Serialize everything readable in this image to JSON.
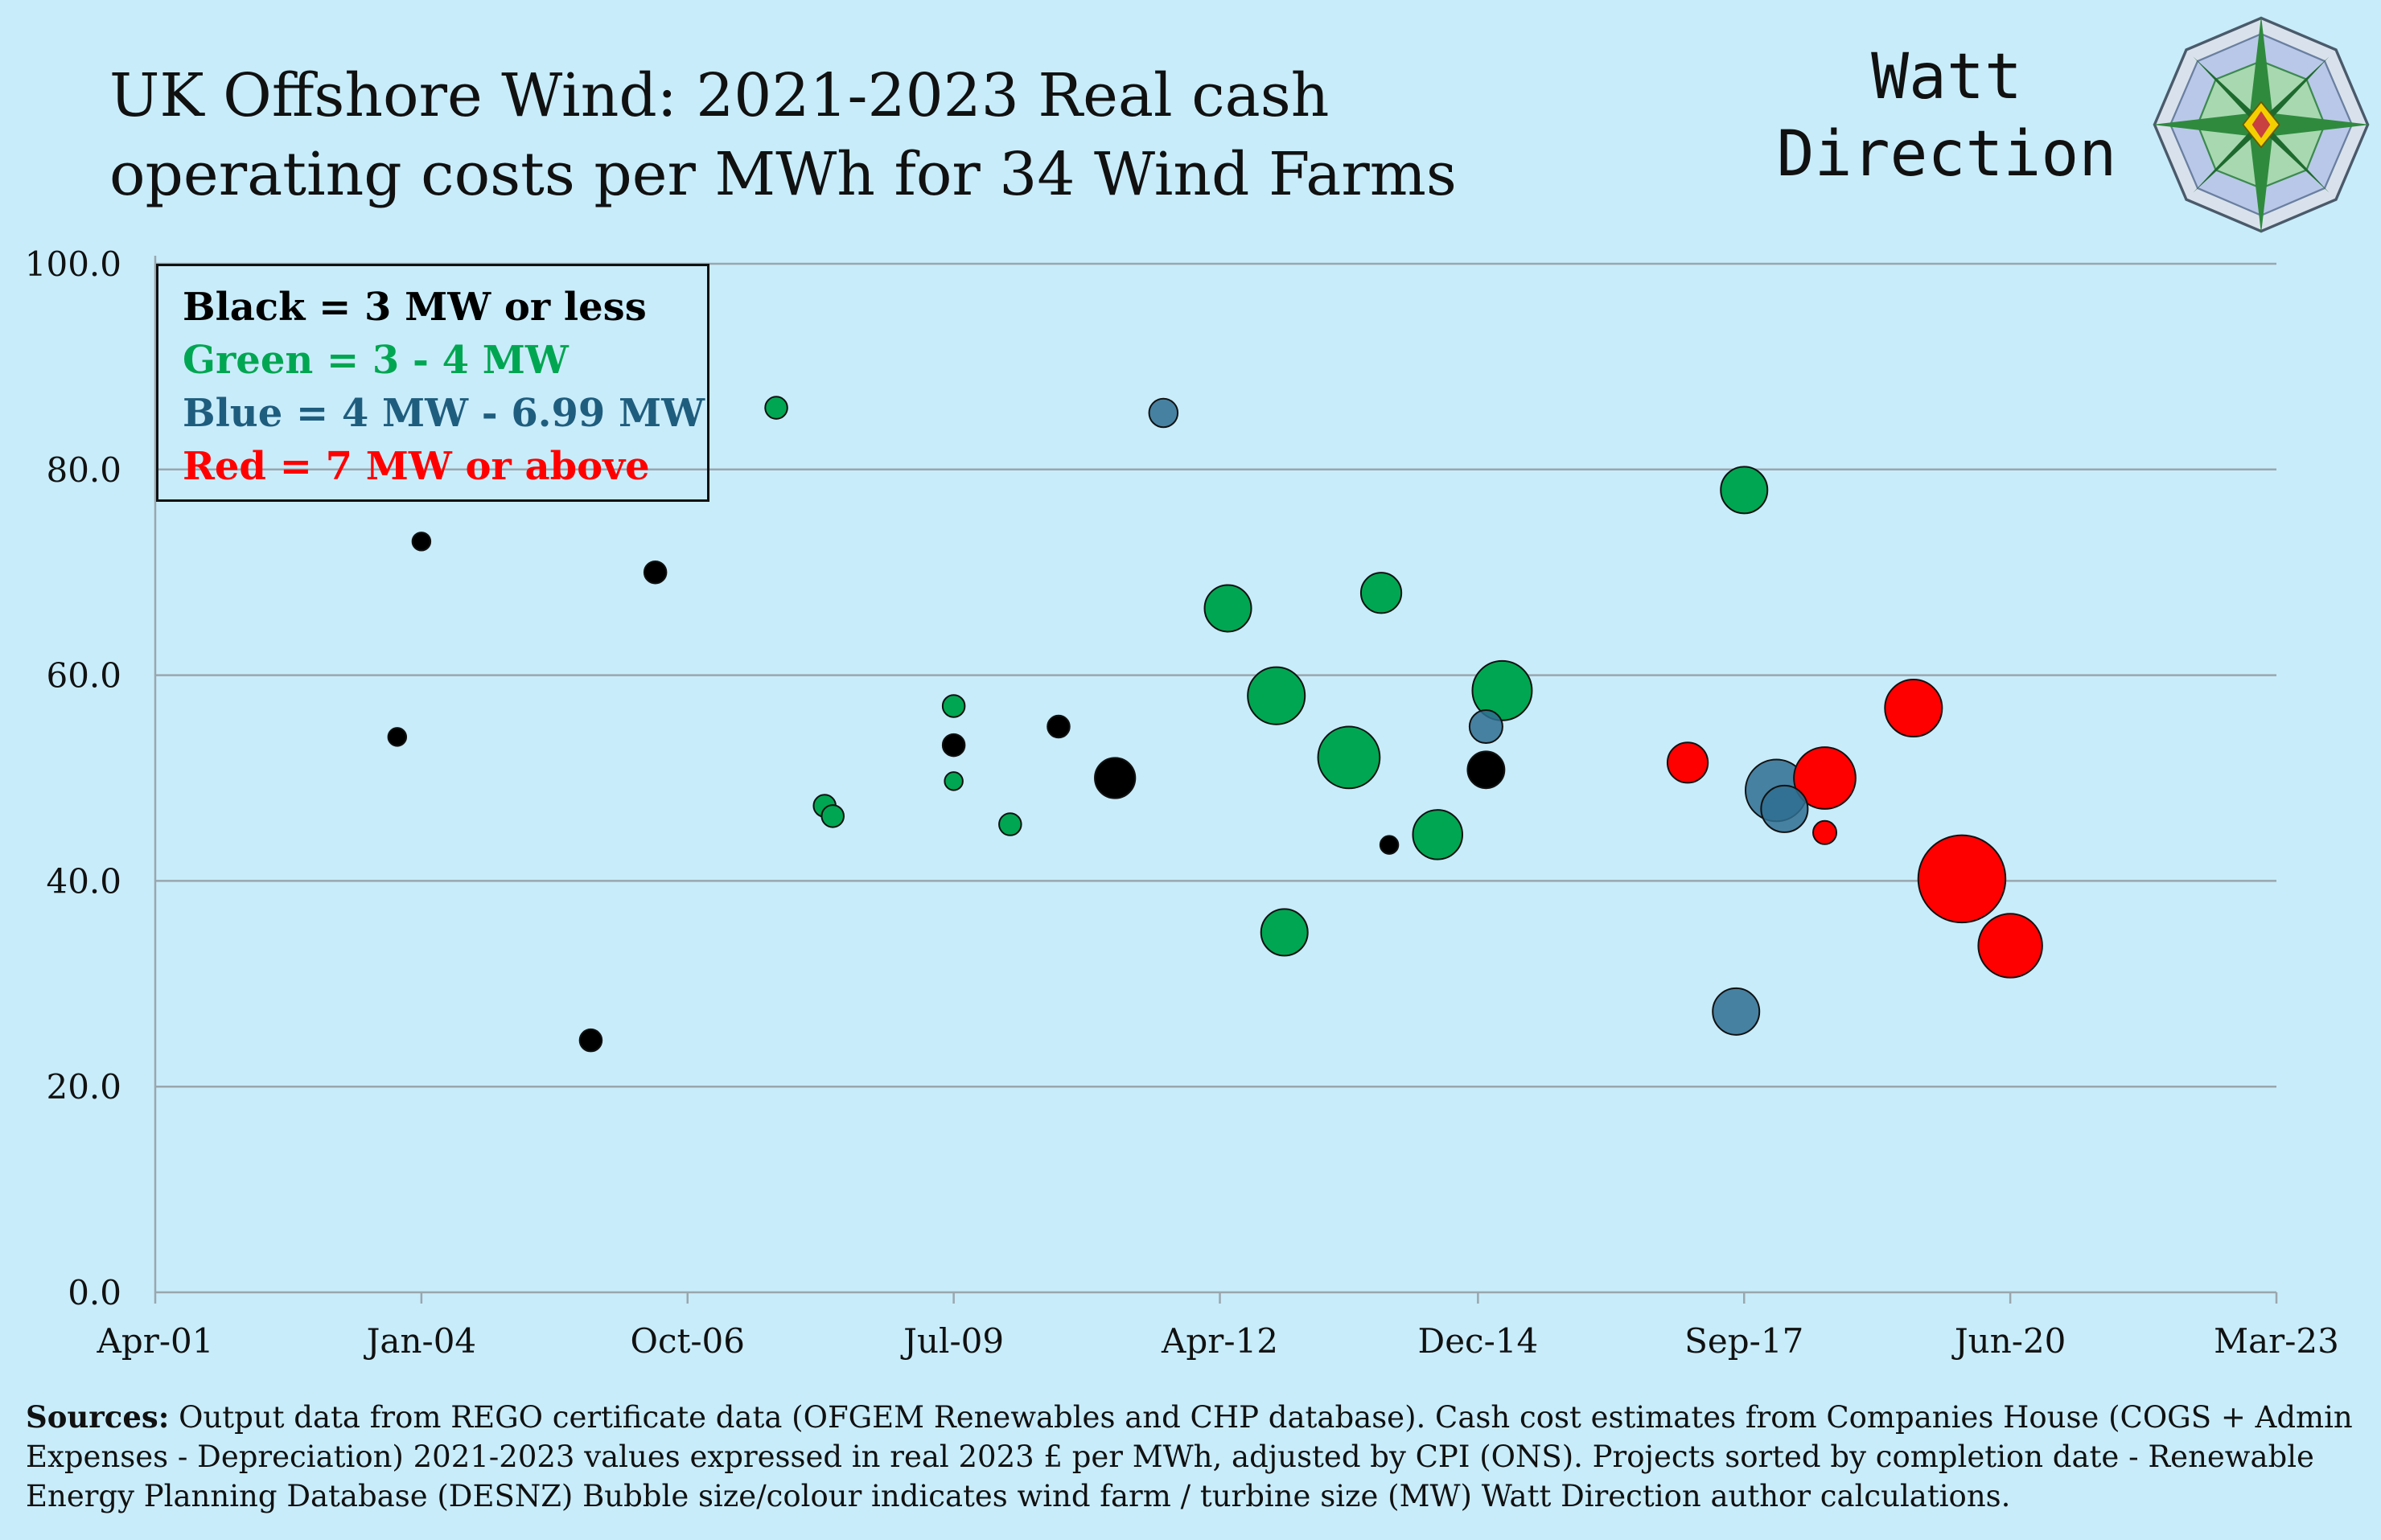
{
  "header": {
    "title_line1": "UK Offshore Wind:  2021-2023 Real cash",
    "title_line2": "operating costs per MWh for 34 Wind Farms",
    "brand_line1": "Watt",
    "brand_line2": "Direction",
    "logo_icon": "compass-rose-icon"
  },
  "legend": {
    "items": [
      {
        "label": "Black = 3 MW or less",
        "color": "#000000"
      },
      {
        "label": "Green = 3 - 4 MW",
        "color": "#00a651"
      },
      {
        "label": "Blue = 4 MW -  6.99 MW",
        "color": "#1f5d7e"
      },
      {
        "label": "Red =  7 MW or above",
        "color": "#ff0000"
      }
    ]
  },
  "sources": {
    "label": "Sources:",
    "text": " Output data from REGO certificate data (OFGEM Renewables and CHP database). Cash cost estimates from Companies House (COGS + Admin Expenses - Depreciation) 2021-2023 values expressed in real 2023  £ per MWh, adjusted by CPI (ONS). Projects sorted by completion date - Renewable Energy Planning Database (DESNZ) Bubble size/colour indicates wind farm / turbine size (MW) Watt Direction author calculations."
  },
  "chart_data": {
    "type": "scatter",
    "title": "UK Offshore Wind:  2021-2023 Real cash operating costs per MWh for 34 Wind Farms",
    "xlabel": "",
    "ylabel": "",
    "xlim": [
      "2001-04",
      "2023-03"
    ],
    "ylim": [
      0,
      100
    ],
    "xticks": [
      "Apr-01",
      "Jan-04",
      "Oct-06",
      "Jul-09",
      "Apr-12",
      "Dec-14",
      "Sep-17",
      "Jun-20",
      "Mar-23"
    ],
    "xtick_dates": [
      "2001-04",
      "2004-01",
      "2006-10",
      "2009-07",
      "2012-04",
      "2014-12",
      "2017-09",
      "2020-06",
      "2023-03"
    ],
    "yticks": [
      "0.0",
      "20.0",
      "40.0",
      "60.0",
      "80.0",
      "100.0"
    ],
    "ytick_values": [
      0,
      20,
      40,
      60,
      80,
      100
    ],
    "grid": "horizontal",
    "legend_position": "top-left",
    "group_colors": {
      "black": "#000000",
      "green": "#00a651",
      "blue": "#2f6f90",
      "red": "#ff0000"
    },
    "points": [
      {
        "date": "2003-10",
        "value": 54.0,
        "group": "black",
        "mw": 60
      },
      {
        "date": "2004-01",
        "value": 73.0,
        "group": "black",
        "mw": 60
      },
      {
        "date": "2005-10",
        "value": 24.5,
        "group": "black",
        "mw": 90
      },
      {
        "date": "2006-06",
        "value": 70.0,
        "group": "black",
        "mw": 90
      },
      {
        "date": "2007-09",
        "value": 86.0,
        "group": "green",
        "mw": 90
      },
      {
        "date": "2008-03",
        "value": 47.3,
        "group": "green",
        "mw": 90
      },
      {
        "date": "2008-04",
        "value": 46.3,
        "group": "green",
        "mw": 90
      },
      {
        "date": "2009-07",
        "value": 57.0,
        "group": "green",
        "mw": 90
      },
      {
        "date": "2009-07",
        "value": 53.2,
        "group": "black",
        "mw": 90
      },
      {
        "date": "2009-07",
        "value": 49.7,
        "group": "green",
        "mw": 60
      },
      {
        "date": "2010-02",
        "value": 45.5,
        "group": "green",
        "mw": 90
      },
      {
        "date": "2010-08",
        "value": 55.0,
        "group": "black",
        "mw": 90
      },
      {
        "date": "2011-03",
        "value": 50.0,
        "group": "black",
        "mw": 300
      },
      {
        "date": "2011-09",
        "value": 85.5,
        "group": "blue",
        "mw": 150
      },
      {
        "date": "2012-05",
        "value": 66.5,
        "group": "green",
        "mw": 400
      },
      {
        "date": "2012-11",
        "value": 58.0,
        "group": "green",
        "mw": 600
      },
      {
        "date": "2012-12",
        "value": 35.0,
        "group": "green",
        "mw": 400
      },
      {
        "date": "2013-08",
        "value": 52.0,
        "group": "green",
        "mw": 700
      },
      {
        "date": "2013-12",
        "value": 68.0,
        "group": "green",
        "mw": 300
      },
      {
        "date": "2014-01",
        "value": 43.5,
        "group": "black",
        "mw": 60
      },
      {
        "date": "2014-07",
        "value": 44.5,
        "group": "green",
        "mw": 450
      },
      {
        "date": "2015-01",
        "value": 50.8,
        "group": "black",
        "mw": 250
      },
      {
        "date": "2015-01",
        "value": 55.0,
        "group": "blue",
        "mw": 200
      },
      {
        "date": "2015-03",
        "value": 58.5,
        "group": "green",
        "mw": 650
      },
      {
        "date": "2017-02",
        "value": 51.5,
        "group": "red",
        "mw": 300
      },
      {
        "date": "2017-08",
        "value": 27.3,
        "group": "blue",
        "mw": 400
      },
      {
        "date": "2017-09",
        "value": 78.0,
        "group": "green",
        "mw": 400
      },
      {
        "date": "2018-01",
        "value": 48.8,
        "group": "blue",
        "mw": 700
      },
      {
        "date": "2018-02",
        "value": 47.0,
        "group": "blue",
        "mw": 400
      },
      {
        "date": "2018-07",
        "value": 50.0,
        "group": "red",
        "mw": 700
      },
      {
        "date": "2018-07",
        "value": 44.7,
        "group": "red",
        "mw": 100
      },
      {
        "date": "2019-06",
        "value": 56.8,
        "group": "red",
        "mw": 600
      },
      {
        "date": "2019-12",
        "value": 40.2,
        "group": "red",
        "mw": 1400
      },
      {
        "date": "2020-06",
        "value": 33.7,
        "group": "red",
        "mw": 750
      }
    ]
  }
}
